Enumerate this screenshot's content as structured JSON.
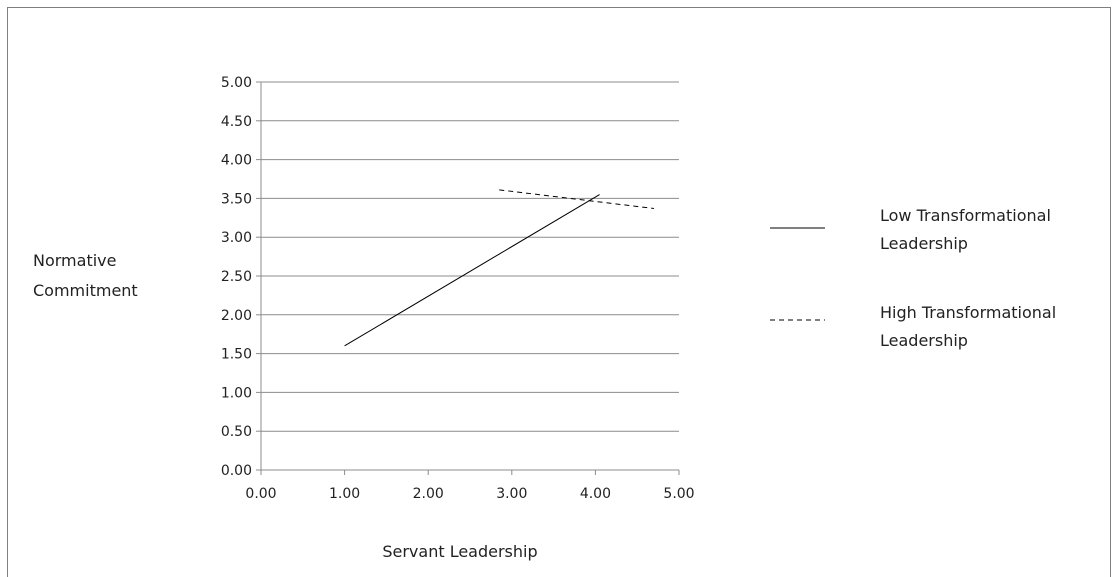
{
  "chart_data": {
    "type": "line",
    "xlabel": "Servant Leadership",
    "ylabel": [
      "Normative",
      "Commitment"
    ],
    "xlim": [
      0,
      5
    ],
    "ylim": [
      0,
      5
    ],
    "x_ticks": [
      "0.00",
      "1.00",
      "2.00",
      "3.00",
      "4.00",
      "5.00"
    ],
    "y_ticks": [
      "0.00",
      "0.50",
      "1.00",
      "1.50",
      "2.00",
      "2.50",
      "3.00",
      "3.50",
      "4.00",
      "4.50",
      "5.00"
    ],
    "grid": "horizontal",
    "legend_position": "right",
    "series": [
      {
        "name": [
          "Low Transformational",
          "Leadership"
        ],
        "style": "solid",
        "color": "#000000",
        "x": [
          1.0,
          4.05
        ],
        "y": [
          1.6,
          3.55
        ]
      },
      {
        "name": [
          "High Transformational",
          "Leadership"
        ],
        "style": "dashed",
        "color": "#000000",
        "x": [
          2.85,
          4.7
        ],
        "y": [
          3.61,
          3.37
        ]
      }
    ]
  }
}
